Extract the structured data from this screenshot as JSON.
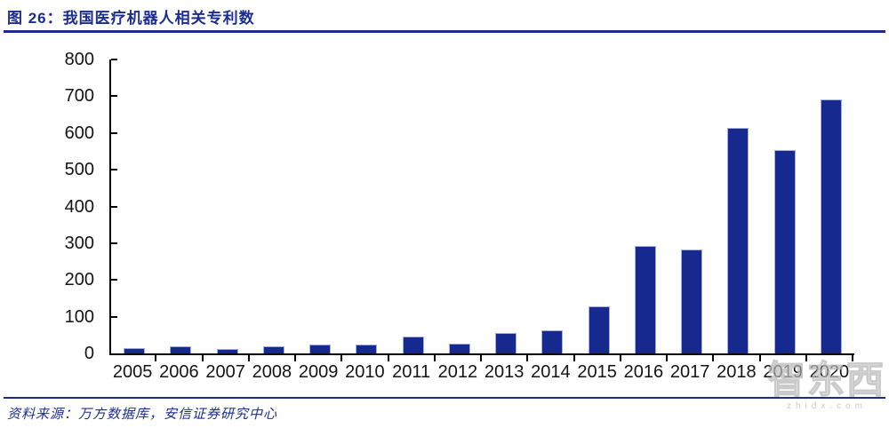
{
  "figure": {
    "title": "图 26：我国医疗机器人相关专利数",
    "source": "资料来源：万方数据库，安信证券研究中心"
  },
  "watermark": {
    "text": "智东西",
    "domain": "zhidx.com"
  },
  "colors": {
    "accent_navy": "#1b2d8f",
    "bar_fill": "#16298e",
    "bar_edge": "#a3aede",
    "axis": "#000000",
    "tick_label": "#141414",
    "watermark_gray": "#b9b9b9"
  },
  "chart_data": {
    "type": "bar",
    "title": "图 26：我国医疗机器人相关专利数",
    "categories": [
      "2005",
      "2006",
      "2007",
      "2008",
      "2009",
      "2010",
      "2011",
      "2012",
      "2013",
      "2014",
      "2015",
      "2016",
      "2017",
      "2018",
      "2019",
      "2020"
    ],
    "values": [
      15,
      20,
      11,
      19,
      23,
      23,
      47,
      27,
      55,
      64,
      128,
      292,
      283,
      613,
      554,
      691
    ],
    "xlabel": "",
    "ylabel": "",
    "ylim": [
      0,
      800
    ],
    "yticks": [
      0,
      100,
      200,
      300,
      400,
      500,
      600,
      700,
      800
    ],
    "grid": "off",
    "legend": "none",
    "bar_color": "#16298e"
  }
}
